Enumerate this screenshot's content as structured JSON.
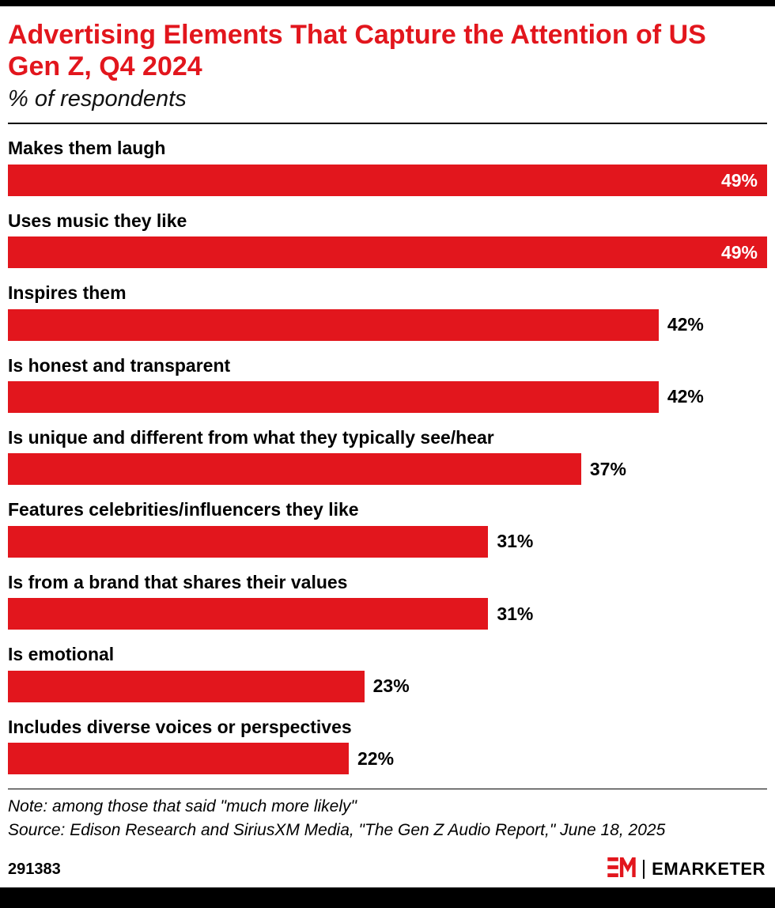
{
  "header": {
    "title": "Advertising Elements That Capture the Attention of US Gen Z, Q4 2024",
    "subtitle": "% of respondents"
  },
  "chart_data": {
    "type": "bar",
    "orientation": "horizontal",
    "title": "Advertising Elements That Capture the Attention of US Gen Z, Q4 2024",
    "subtitle": "% of respondents",
    "categories": [
      "Makes them laugh",
      "Uses music they like",
      "Inspires them",
      "Is honest and transparent",
      "Is unique and different from what they typically see/hear",
      "Features celebrities/influencers they like",
      "Is from a brand that shares their values",
      "Is emotional",
      "Includes diverse voices or perspectives"
    ],
    "values": [
      49,
      49,
      42,
      42,
      37,
      31,
      31,
      23,
      22
    ],
    "value_suffix": "%",
    "xlim": [
      0,
      49
    ],
    "bar_color": "#e2161d",
    "value_label_color_inside": "#ffffff",
    "value_label_color_outside": "#000000",
    "grid": false,
    "legend": false
  },
  "footer": {
    "note": "Note: among those that said \"much more likely\"",
    "source": "Source: Edison Research and SiriusXM Media, \"The Gen Z Audio Report,\" June 18, 2025",
    "chart_id": "291383",
    "logo_text": "EM",
    "brand": "EMARKETER"
  },
  "colors": {
    "accent_red": "#e2161d",
    "bar_black": "#000000"
  }
}
